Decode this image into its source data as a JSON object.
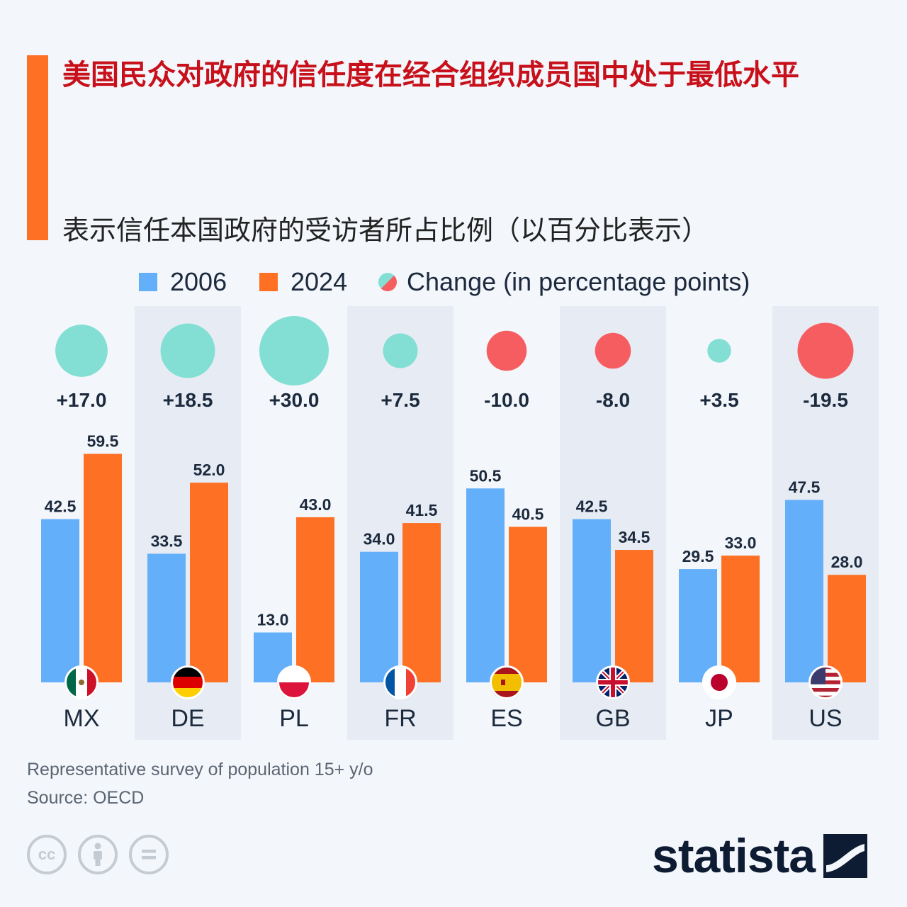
{
  "title": "美国民众对政府的信任度在经合组织成员国中处于最低水平",
  "subtitle": "表示信任本国政府的受访者所占比例（以百分比表示）",
  "legend": {
    "series_2006": "2006",
    "series_2024": "2024",
    "change": "Change (in percentage points)"
  },
  "colors": {
    "s2006": "#64affa",
    "s2024": "#fe7125",
    "positive": "#83dfd4",
    "negative": "#f65d60",
    "accent": "#fe7125",
    "title": "#c8101b",
    "label": "#1c2a3e"
  },
  "chart_data": {
    "type": "bar",
    "title": "美国民众对政府的信任度在经合组织成员国中处于最低水平",
    "subtitle": "表示信任本国政府的受访者所占比例（以百分比表示）",
    "categories": [
      "MX",
      "DE",
      "PL",
      "FR",
      "ES",
      "GB",
      "JP",
      "US"
    ],
    "flags": [
      "flag-mexico-icon",
      "flag-germany-icon",
      "flag-poland-icon",
      "flag-france-icon",
      "flag-spain-icon",
      "flag-uk-icon",
      "flag-japan-icon",
      "flag-usa-icon"
    ],
    "series": [
      {
        "name": "2006",
        "values": [
          42.5,
          33.5,
          13.0,
          34.0,
          50.5,
          42.5,
          29.5,
          47.5
        ],
        "labels": [
          "42.5",
          "33.5",
          "13.0",
          "34.0",
          "50.5",
          "42.5",
          "29.5",
          "47.5"
        ]
      },
      {
        "name": "2024",
        "values": [
          59.5,
          52.0,
          43.0,
          41.5,
          40.5,
          34.5,
          33.0,
          28.0
        ],
        "labels": [
          "59.5",
          "52.0",
          "43.0",
          "41.5",
          "40.5",
          "34.5",
          "33.0",
          "28.0"
        ]
      }
    ],
    "change": {
      "name": "Change (in percentage points)",
      "values": [
        17.0,
        18.5,
        30.0,
        7.5,
        -10.0,
        -8.0,
        3.5,
        -19.5
      ],
      "labels": [
        "+17.0",
        "+18.5",
        "+30.0",
        "+7.5",
        "-10.0",
        "-8.0",
        "+3.5",
        "-19.5"
      ]
    },
    "ylim": [
      0,
      60
    ],
    "xlabel": "",
    "ylabel": ""
  },
  "footer": {
    "note": "Representative survey of population 15+ y/o",
    "source": "Source: OECD"
  },
  "license_icons": [
    "cc-icon",
    "attribution-icon",
    "no-derivatives-icon"
  ],
  "brand": "statista"
}
